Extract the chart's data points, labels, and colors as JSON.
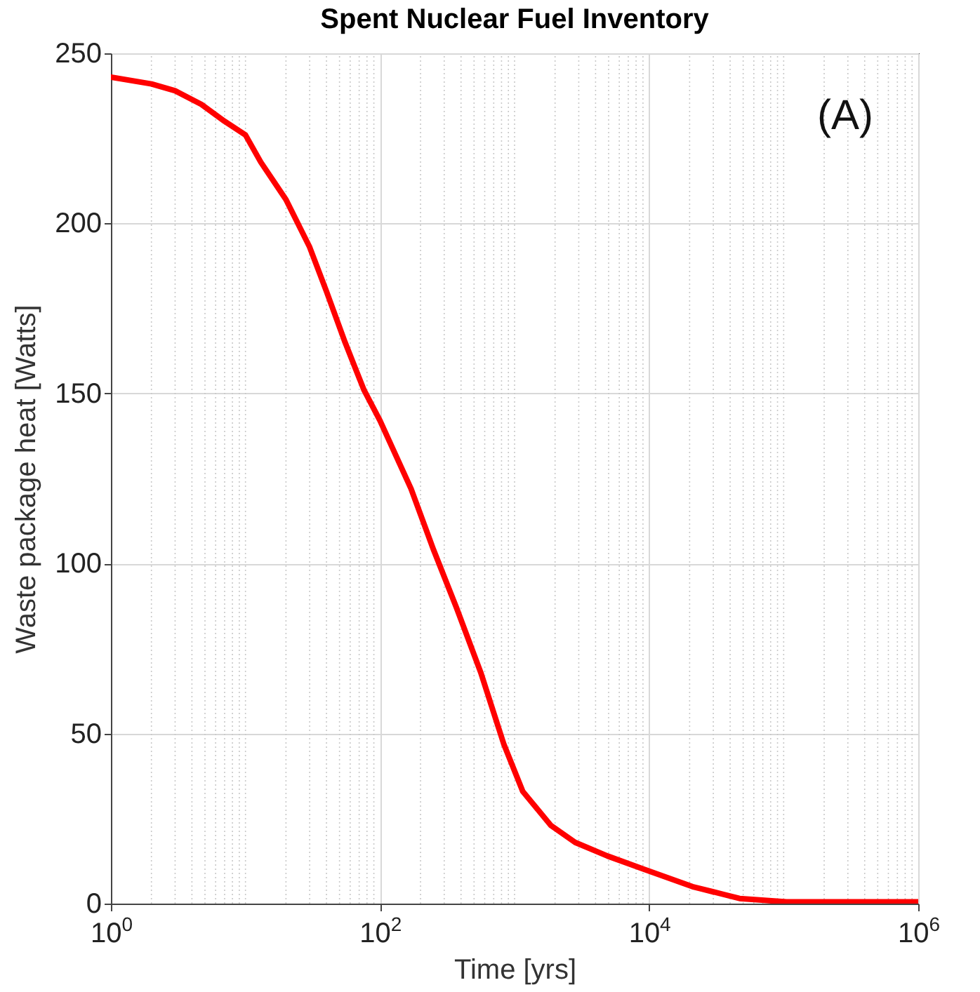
{
  "chart_data": {
    "type": "line",
    "title": "Spent Nuclear Fuel Inventory",
    "xlabel": "Time [yrs]",
    "ylabel": "Waste package heat [Watts]",
    "annotations": [
      "(A)"
    ],
    "x": [
      1,
      2,
      3,
      4.7,
      7,
      10,
      13,
      20,
      30,
      40,
      55,
      76,
      100,
      170,
      250,
      370,
      560,
      830,
      1150,
      1860,
      2820,
      4900,
      9300,
      21000,
      47000,
      105000,
      1000000
    ],
    "series": [
      {
        "color": "#ff0000",
        "values": [
          243,
          241,
          239,
          235,
          230,
          226,
          218,
          207,
          193,
          180,
          165,
          151,
          142,
          122,
          104,
          87,
          68,
          47,
          33,
          23,
          18,
          14,
          10,
          5,
          1.5,
          0.5,
          0.5
        ]
      }
    ],
    "log": "x",
    "xlim": [
      1,
      1000000
    ],
    "xticks": [
      {
        "value": 1,
        "label": "10$^{0}$"
      },
      {
        "value": 100,
        "label": "10$^{2}$"
      },
      {
        "value": 10000,
        "label": "10$^{4}$"
      },
      {
        "value": 1000000,
        "label": "10$^{6}$"
      }
    ],
    "ylim": [
      0,
      250
    ],
    "yticks": [
      0,
      50,
      100,
      150,
      200,
      250
    ],
    "grid": true,
    "line_style": "solid",
    "marker": "none"
  }
}
